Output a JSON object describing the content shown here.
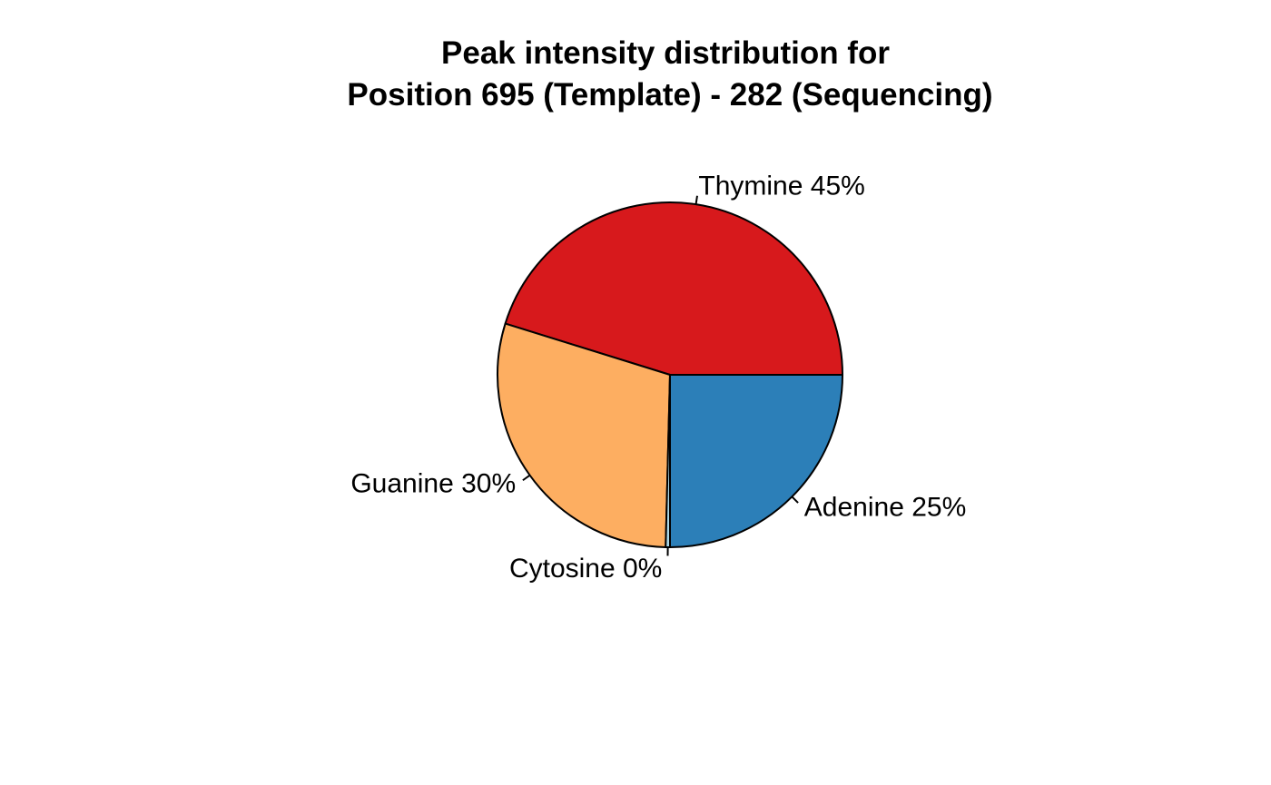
{
  "chart_data": {
    "type": "pie",
    "title_lines": [
      "Peak intensity distribution for",
      "Position 695 (Template) - 282 (Sequencing)"
    ],
    "direction": "counterclockwise",
    "start_angle_deg": 0,
    "slices": [
      {
        "name": "Thymine",
        "label": "Thymine 45%",
        "value": 45.2,
        "color": "#d7191c"
      },
      {
        "name": "Guanine",
        "label": "Guanine 30%",
        "value": 29.4,
        "color": "#fdae61"
      },
      {
        "name": "Cytosine",
        "label": "Cytosine 0%",
        "value": 0.4,
        "color": "#abd9e9"
      },
      {
        "name": "Adenine",
        "label": "Adenine 25%",
        "value": 25.0,
        "color": "#2c7fb8"
      }
    ]
  }
}
